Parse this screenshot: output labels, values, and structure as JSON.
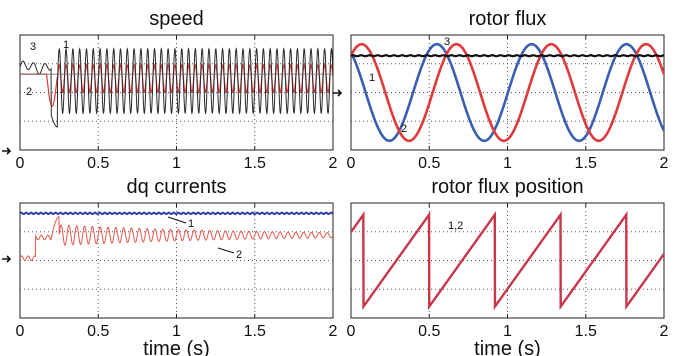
{
  "chart_data": [
    {
      "type": "line",
      "title": "speed",
      "xlim": [
        0,
        2
      ],
      "x_ticks": [
        "0",
        "0.5",
        "1",
        "1.5",
        "2"
      ],
      "grid": true,
      "series": [
        {
          "name": "1",
          "color": "#2a2a2a",
          "description": "oscillating trace, about 0.6 to 1.5 of axis after t=0.2s"
        },
        {
          "name": "2",
          "color": "#e03a3a",
          "description": "reference, flat then dip near t=0.2s then oscillating"
        },
        {
          "name": "3",
          "color": "#1a1a1a",
          "description": "initial trace before t=0.2s"
        }
      ],
      "annotations": [
        "1",
        "2",
        "3"
      ],
      "zero_marker": "arrow at y=0"
    },
    {
      "type": "line",
      "title": "rotor flux",
      "xlim": [
        0,
        2
      ],
      "x_ticks": [
        "0",
        "0.5",
        "1",
        "1.5",
        "2"
      ],
      "grid": true,
      "series": [
        {
          "name": "1",
          "color": "#3a5fb0",
          "description": "sinusoid about 3.3 cycles"
        },
        {
          "name": "2",
          "color": "#e03a3a",
          "description": "sinusoid, phase shifted from 1"
        },
        {
          "name": "3",
          "color": "#111111",
          "description": "constant magnitude near top"
        }
      ],
      "annotations": [
        "1",
        "2",
        "3"
      ],
      "zero_marker": "arrow at y=0"
    },
    {
      "type": "line",
      "title": "dq currents",
      "xlim": [
        0,
        2
      ],
      "x_ticks": [
        "0",
        "0.5",
        "1",
        "1.5",
        "2"
      ],
      "xlabel": "time (s)",
      "grid": true,
      "series": [
        {
          "name": "1",
          "color": "#2f3fb0",
          "description": "constant near top"
        },
        {
          "name": "2",
          "color": "#e8584a",
          "description": "step then decaying/oscillating"
        }
      ],
      "annotations": [
        "1",
        "2"
      ],
      "zero_marker": "arrow at y=0"
    },
    {
      "type": "line",
      "title": "rotor flux position",
      "xlim": [
        0,
        2
      ],
      "x_ticks": [
        "0",
        "0.5",
        "1",
        "1.5",
        "2"
      ],
      "xlabel": "time (s)",
      "grid": true,
      "series": [
        {
          "name": "1,2",
          "color": "#c8364a",
          "description": "sawtooth, period about 0.42 s"
        }
      ],
      "annotations": [
        "1,2"
      ]
    }
  ]
}
